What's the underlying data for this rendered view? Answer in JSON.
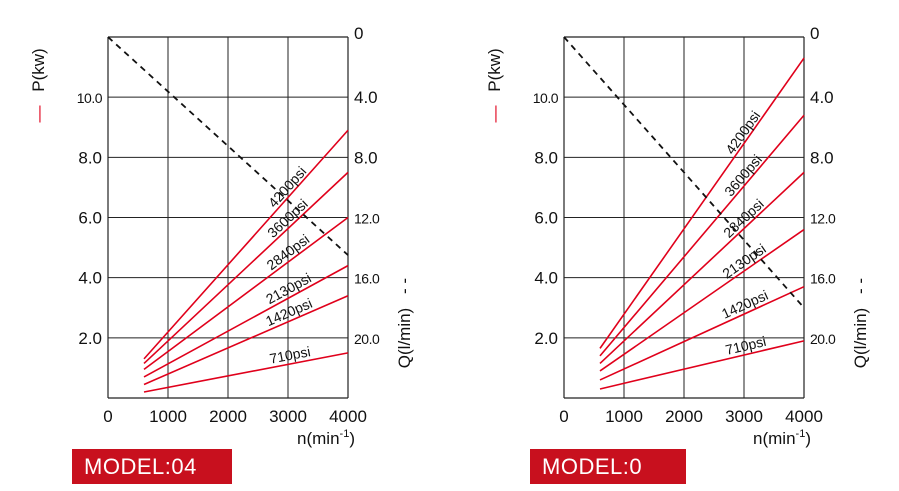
{
  "colors": {
    "pressure_line": "#e0001b",
    "flow_line": "#111111",
    "grid": "#222222",
    "badge_bg": "#c8101e",
    "badge_text": "#ffffff"
  },
  "chart_data": [
    {
      "type": "line",
      "model_label": "MODEL:04",
      "x": {
        "label_base": "n(min",
        "label_sup": "-1",
        "label_end": ")",
        "range": [
          0,
          4000
        ],
        "ticks": [
          "0",
          "1000",
          "2000",
          "3000",
          "4000"
        ]
      },
      "y_left": {
        "label": "P(kw)",
        "legend_mark": "—",
        "range": [
          0,
          12
        ],
        "ticks": [
          {
            "v": 2,
            "t": "2.0"
          },
          {
            "v": 4,
            "t": "4.0"
          },
          {
            "v": 6,
            "t": "6.0"
          },
          {
            "v": 8,
            "t": "8.0"
          },
          {
            "v": 10,
            "t": "10.0"
          }
        ]
      },
      "y_right": {
        "label": "Q(l/min)",
        "legend_mark": "- -",
        "range": [
          0,
          24
        ],
        "ticks": [
          {
            "v": 0,
            "t": "0"
          },
          {
            "v": 4,
            "t": "4.0"
          },
          {
            "v": 8,
            "t": "8.0"
          },
          {
            "v": 12,
            "t": "12.0"
          },
          {
            "v": 16,
            "t": "16.0"
          },
          {
            "v": 20,
            "t": "20.0"
          }
        ]
      },
      "series": [
        {
          "name": "710psi",
          "points": [
            [
              600,
              0.2
            ],
            [
              4000,
              1.5
            ]
          ]
        },
        {
          "name": "1420psi",
          "points": [
            [
              600,
              0.45
            ],
            [
              4000,
              3.4
            ]
          ]
        },
        {
          "name": "2130psi",
          "points": [
            [
              600,
              0.7
            ],
            [
              4000,
              4.4
            ]
          ]
        },
        {
          "name": "2840psi",
          "points": [
            [
              600,
              0.95
            ],
            [
              4000,
              6.0
            ]
          ]
        },
        {
          "name": "3600psi",
          "points": [
            [
              600,
              1.15
            ],
            [
              4000,
              7.5
            ]
          ]
        },
        {
          "name": "4200psi",
          "points": [
            [
              600,
              1.3
            ],
            [
              4000,
              8.9
            ]
          ]
        }
      ],
      "flow_series": {
        "points": [
          [
            0,
            0
          ],
          [
            4000,
            14.5
          ]
        ]
      }
    },
    {
      "type": "line",
      "model_label": "MODEL:0",
      "x": {
        "label_base": "n(min",
        "label_sup": "-1",
        "label_end": ")",
        "range": [
          0,
          4000
        ],
        "ticks": [
          "0",
          "1000",
          "2000",
          "3000",
          "4000"
        ]
      },
      "y_left": {
        "label": "P(kw)",
        "legend_mark": "—",
        "range": [
          0,
          12
        ],
        "ticks": [
          {
            "v": 2,
            "t": "2.0"
          },
          {
            "v": 4,
            "t": "4.0"
          },
          {
            "v": 6,
            "t": "6.0"
          },
          {
            "v": 8,
            "t": "8.0"
          },
          {
            "v": 10,
            "t": "10.0"
          }
        ]
      },
      "y_right": {
        "label": "Q(l/min)",
        "legend_mark": "- -",
        "range": [
          0,
          24
        ],
        "ticks": [
          {
            "v": 0,
            "t": "0"
          },
          {
            "v": 4,
            "t": "4.0"
          },
          {
            "v": 8,
            "t": "8.0"
          },
          {
            "v": 12,
            "t": "12.0"
          },
          {
            "v": 16,
            "t": "16.0"
          },
          {
            "v": 20,
            "t": "20.0"
          }
        ]
      },
      "series": [
        {
          "name": "710psi",
          "points": [
            [
              600,
              0.3
            ],
            [
              4000,
              1.9
            ]
          ]
        },
        {
          "name": "1420psi",
          "points": [
            [
              600,
              0.6
            ],
            [
              4000,
              3.7
            ]
          ]
        },
        {
          "name": "2130psi",
          "points": [
            [
              600,
              0.9
            ],
            [
              4000,
              5.6
            ]
          ]
        },
        {
          "name": "2840psi",
          "points": [
            [
              600,
              1.15
            ],
            [
              4000,
              7.5
            ]
          ]
        },
        {
          "name": "3600psi",
          "points": [
            [
              600,
              1.4
            ],
            [
              4000,
              9.4
            ]
          ]
        },
        {
          "name": "4200psi",
          "points": [
            [
              600,
              1.65
            ],
            [
              4000,
              11.3
            ]
          ]
        }
      ],
      "flow_series": {
        "points": [
          [
            0,
            0
          ],
          [
            4000,
            18
          ]
        ]
      }
    }
  ]
}
